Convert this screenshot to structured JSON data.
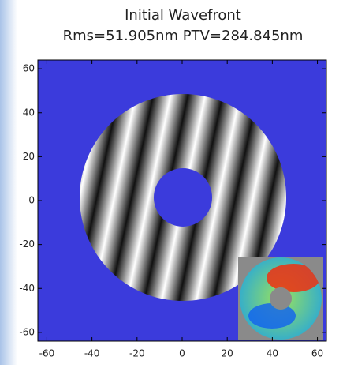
{
  "chart_data": {
    "type": "image",
    "title": "Initial Wavefront",
    "subtitle": "Rms=51.905nm PTV=284.845nm",
    "xlim": [
      -64,
      64
    ],
    "ylim": [
      -64,
      64
    ],
    "xticks": [
      -60,
      -40,
      -20,
      0,
      20,
      40,
      60
    ],
    "yticks": [
      -60,
      -40,
      -20,
      0,
      20,
      40,
      60
    ]
  }
}
